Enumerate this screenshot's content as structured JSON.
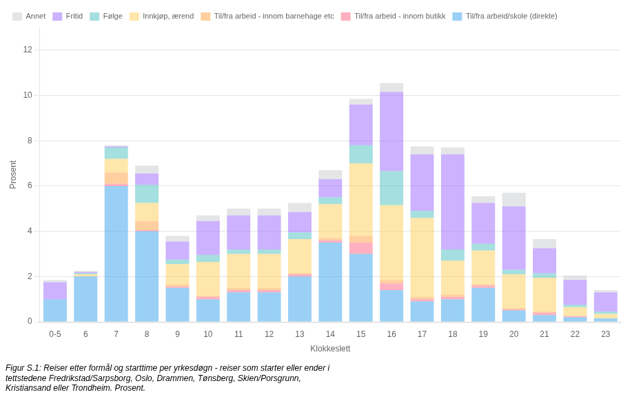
{
  "chart_data": {
    "type": "bar",
    "stacked": true,
    "categories": [
      "0-5",
      "6",
      "7",
      "8",
      "9",
      "10",
      "11",
      "12",
      "13",
      "14",
      "15",
      "16",
      "17",
      "18",
      "19",
      "20",
      "21",
      "22",
      "23"
    ],
    "series": [
      {
        "name": "Til/fra arbeid/skole (direkte)",
        "values": [
          1.0,
          2.0,
          6.0,
          4.0,
          1.5,
          1.0,
          1.3,
          1.3,
          2.0,
          3.5,
          3.0,
          1.4,
          0.9,
          1.0,
          1.5,
          0.5,
          0.3,
          0.2,
          0.15
        ]
      },
      {
        "name": "Til/fra arbeid - innom butikk",
        "values": [
          0.0,
          0.0,
          0.1,
          0.05,
          0.05,
          0.1,
          0.1,
          0.1,
          0.1,
          0.1,
          0.5,
          0.3,
          0.1,
          0.1,
          0.1,
          0.05,
          0.1,
          0.05,
          0.0
        ]
      },
      {
        "name": "Til/fra arbeid - innom barnehage etc",
        "values": [
          0.0,
          0.0,
          0.5,
          0.4,
          0.1,
          0.05,
          0.1,
          0.1,
          0.05,
          0.1,
          0.3,
          0.15,
          0.1,
          0.1,
          0.05,
          0.05,
          0.05,
          0.0,
          0.0
        ]
      },
      {
        "name": "Innkjøp, ærend",
        "values": [
          0.0,
          0.1,
          0.6,
          0.8,
          0.9,
          1.5,
          1.5,
          1.5,
          1.5,
          1.5,
          3.2,
          3.3,
          3.5,
          1.5,
          1.5,
          1.5,
          1.5,
          0.4,
          0.2
        ]
      },
      {
        "name": "Følge",
        "values": [
          0.0,
          0.05,
          0.5,
          0.8,
          0.2,
          0.3,
          0.2,
          0.2,
          0.3,
          0.3,
          0.8,
          1.5,
          0.3,
          0.5,
          0.3,
          0.2,
          0.2,
          0.1,
          0.1
        ]
      },
      {
        "name": "Fritid",
        "values": [
          0.75,
          0.05,
          0.05,
          0.5,
          0.8,
          1.5,
          1.5,
          1.5,
          0.9,
          0.8,
          1.8,
          3.5,
          2.5,
          4.2,
          1.8,
          2.8,
          1.1,
          1.1,
          0.85
        ]
      },
      {
        "name": "Annet",
        "values": [
          0.1,
          0.05,
          0.05,
          0.35,
          0.25,
          0.25,
          0.3,
          0.3,
          0.4,
          0.4,
          0.25,
          0.4,
          0.35,
          0.3,
          0.3,
          0.6,
          0.4,
          0.2,
          0.1
        ]
      }
    ],
    "xlabel": "Klokkeslett",
    "ylabel": "Prosent",
    "ylim": [
      0,
      13
    ],
    "yticks": [
      0,
      2,
      4,
      6,
      8,
      10,
      12
    ],
    "grid": true,
    "legend": "upper left",
    "caption": "Figur S.1: Reiser etter formål og starttime per yrkesdøgn - reiser som starter eller ender i\ntettstedene Fredrikstad/Sarpsborg, Oslo, Drammen, Tønsberg, Skien/Porsgrunn,\nKristiansand eller Trondheim. Prosent."
  }
}
